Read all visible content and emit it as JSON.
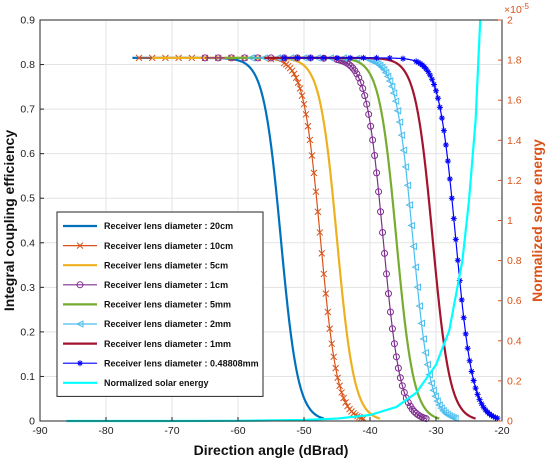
{
  "chart_data": {
    "type": "line",
    "xlabel": "Direction angle  (dBrad)",
    "ylabel": "Integral coupling efficiency",
    "y2label": "Normalized solar energy",
    "xlim": [
      -90,
      -20
    ],
    "ylim": [
      0,
      0.9
    ],
    "y2lim": [
      0,
      2
    ],
    "y2_exponent": "×10",
    "y2_exponent_power": "-5",
    "xticks": [
      "-90",
      "-80",
      "-70",
      "-60",
      "-50",
      "-40",
      "-30",
      "-20"
    ],
    "yticks": [
      "0",
      "0.1",
      "0.2",
      "0.3",
      "0.4",
      "0.5",
      "0.6",
      "0.7",
      "0.8",
      "0.9"
    ],
    "y2ticks": [
      "0",
      "0.2",
      "0.4",
      "0.6",
      "0.8",
      "1",
      "1.2",
      "1.4",
      "1.6",
      "1.8",
      "2"
    ],
    "grid": true,
    "legend_position": "bottom-left",
    "series": [
      {
        "name": "Receiver lens diameter : 20cm",
        "color": "#0072bd",
        "marker": "none",
        "width": 2.2,
        "x_start": -76,
        "midpoint": -53.5,
        "plateau": 0.815
      },
      {
        "name": "Receiver lens diameter : 10cm",
        "color": "#d95319",
        "marker": "x",
        "width": 1.2,
        "x_start": -75,
        "midpoint": -47.5,
        "plateau": 0.815
      },
      {
        "name": "Receiver lens diameter : 5cm",
        "color": "#edb120",
        "marker": "none",
        "width": 2.2,
        "x_start": -73,
        "midpoint": -45,
        "plateau": 0.815
      },
      {
        "name": "Receiver lens diameter : 1cm",
        "color": "#7e2f8e",
        "marker": "o",
        "width": 1.2,
        "x_start": -65,
        "midpoint": -38,
        "plateau": 0.815
      },
      {
        "name": "Receiver lens diameter : 5mm",
        "color": "#77ac30",
        "marker": "none",
        "width": 2.2,
        "x_start": -62,
        "midpoint": -36,
        "plateau": 0.815
      },
      {
        "name": "Receiver lens diameter : 2mm",
        "color": "#4dbeee",
        "marker": "<",
        "width": 1.2,
        "x_start": -58,
        "midpoint": -33.5,
        "plateau": 0.815
      },
      {
        "name": "Receiver lens diameter : 1mm",
        "color": "#a2142f",
        "marker": "none",
        "width": 2.2,
        "x_start": -56,
        "midpoint": -30.5,
        "plateau": 0.815
      },
      {
        "name": "Receiver lens diameter : 0.48808mm",
        "color": "#0000ff",
        "marker": "*",
        "width": 1.2,
        "x_start": -53,
        "midpoint": -27,
        "plateau": 0.815
      }
    ],
    "solar_series": {
      "name": "Normalized solar energy",
      "color": "#00ffff",
      "axis": "right",
      "x": [
        -86,
        -70,
        -60,
        -50,
        -45,
        -40,
        -36,
        -33,
        -30,
        -28,
        -26,
        -25,
        -24,
        -23.3
      ],
      "y": [
        0,
        0,
        0.001,
        0.005,
        0.012,
        0.03,
        0.07,
        0.14,
        0.28,
        0.45,
        0.8,
        1.1,
        1.5,
        2.0
      ]
    }
  }
}
